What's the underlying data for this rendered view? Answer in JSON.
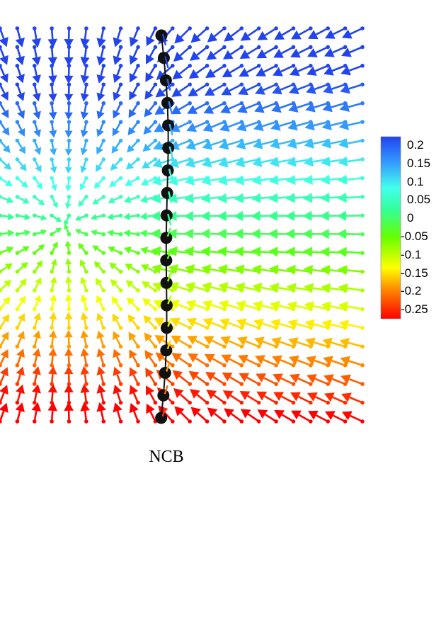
{
  "chart_data": {
    "type": "quiver",
    "caption": "NCB",
    "colorbar": {
      "ticks": [
        "0.2",
        "0.15",
        "0.1",
        "0.05",
        "0",
        "-0.05",
        "-0.1",
        "-0.15",
        "-0.2",
        "-0.25"
      ],
      "range": [
        -0.27,
        0.21
      ],
      "colors": [
        "#ff0000",
        "#ff8800",
        "#ffff00",
        "#66ff00",
        "#33ff99",
        "#44ffee",
        "#3399ff",
        "#2244ee"
      ]
    },
    "field": {
      "grid_x": [
        0,
        1
      ],
      "grid_y": [
        0,
        1
      ],
      "sink_center": [
        0.18,
        0.5
      ],
      "color_quantity": "vertical velocity"
    },
    "filament": {
      "bead_count": 18,
      "x_position": 0.43
    }
  }
}
